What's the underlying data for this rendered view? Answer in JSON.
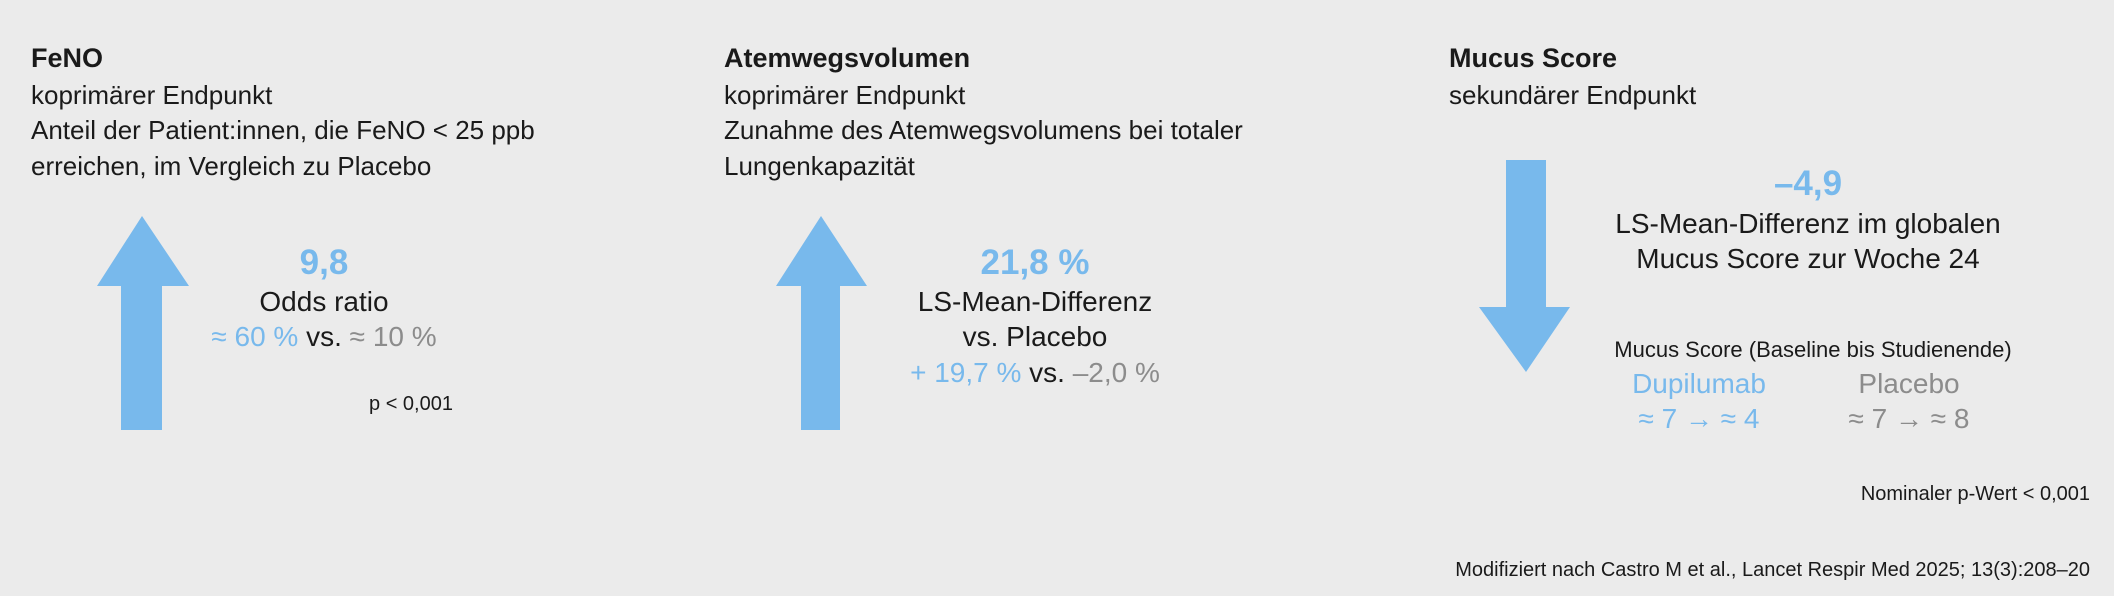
{
  "panels": [
    {
      "title": "FeNO",
      "subtitle": "koprimärer Endpunkt",
      "description": [
        "Anteil der Patient:innen, die FeNO < 25 ppb",
        "erreichen, im Vergleich zu Placebo"
      ],
      "value": "9,8",
      "label": [
        "Odds ratio"
      ],
      "comparison": {
        "treatment": "≈ 60 %",
        "vs": "vs.",
        "placebo": "≈ 10 %"
      },
      "p_value": "p < 0,001"
    },
    {
      "title": "Atemwegsvolumen",
      "subtitle": "koprimärer Endpunkt",
      "description": [
        "Zunahme des Atemwegsvolumens bei totaler",
        "Lungenkapazität"
      ],
      "value": "21,8 %",
      "label": [
        "LS-Mean-Differenz",
        "vs. Placebo"
      ],
      "comparison": {
        "treatment": "+ 19,7 %",
        "vs": "vs.",
        "placebo": "–2,0 %"
      }
    },
    {
      "title": "Mucus Score",
      "subtitle": "sekundärer Endpunkt",
      "value": "–4,9",
      "label": [
        "LS-Mean-Differenz im globalen",
        "Mucus Score zur Woche 24"
      ],
      "detail_title": "Mucus Score (Baseline bis Studienende)",
      "groups": [
        {
          "name": "Dupilumab",
          "change": "≈ 7 → ≈ 4"
        },
        {
          "name": "Placebo",
          "change": "≈ 7 → ≈ 8"
        }
      ],
      "p_value": "Nominaler p-Wert < 0,001"
    }
  ],
  "footer": "Modifiziert nach Castro M et al., Lancet Respir Med 2025; 13(3):208–20"
}
